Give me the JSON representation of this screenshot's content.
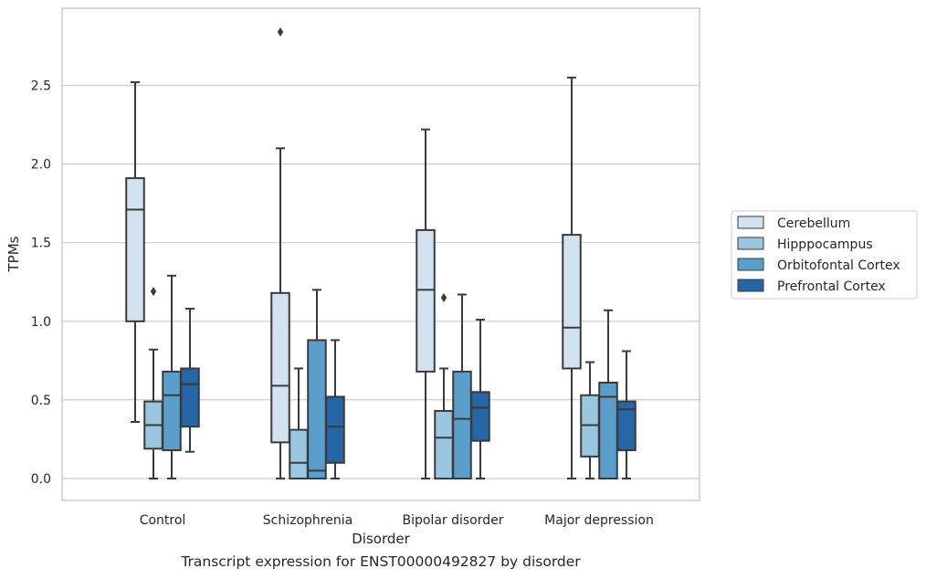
{
  "caption": "Transcript expression for ENST00000492827 by disorder",
  "chart_data": {
    "type": "box",
    "xlabel": "Disorder",
    "ylabel": "TPMs",
    "ylim": [
      -0.14,
      2.99
    ],
    "yticks": [
      0.0,
      0.5,
      1.0,
      1.5,
      2.0,
      2.5
    ],
    "ytick_labels": [
      "0.0",
      "0.5",
      "1.0",
      "1.5",
      "2.0",
      "2.5"
    ],
    "grid": "horizontal",
    "legend_position": "right",
    "categories": [
      "Control",
      "Schizophrenia",
      "Bipolar disorder",
      "Major depression"
    ],
    "series": [
      {
        "name": "Cerebellum",
        "color": "#d2e2f1",
        "boxes": [
          {
            "whislo": 0.36,
            "q1": 1.0,
            "med": 1.71,
            "q3": 1.91,
            "whishi": 2.52,
            "fliers": []
          },
          {
            "whislo": 0.0,
            "q1": 0.23,
            "med": 0.59,
            "q3": 1.18,
            "whishi": 2.1,
            "fliers": [
              2.84
            ]
          },
          {
            "whislo": 0.0,
            "q1": 0.68,
            "med": 1.2,
            "q3": 1.58,
            "whishi": 2.22,
            "fliers": []
          },
          {
            "whislo": 0.0,
            "q1": 0.7,
            "med": 0.96,
            "q3": 1.55,
            "whishi": 2.55,
            "fliers": []
          }
        ]
      },
      {
        "name": "Hipppocampus",
        "color": "#9ac7e0",
        "boxes": [
          {
            "whislo": 0.0,
            "q1": 0.19,
            "med": 0.34,
            "q3": 0.49,
            "whishi": 0.82,
            "fliers": [
              1.19
            ]
          },
          {
            "whislo": 0.0,
            "q1": 0.0,
            "med": 0.1,
            "q3": 0.31,
            "whishi": 0.7,
            "fliers": []
          },
          {
            "whislo": 0.0,
            "q1": 0.0,
            "med": 0.26,
            "q3": 0.43,
            "whishi": 0.7,
            "fliers": [
              1.15
            ]
          },
          {
            "whislo": 0.0,
            "q1": 0.14,
            "med": 0.34,
            "q3": 0.53,
            "whishi": 0.74,
            "fliers": []
          }
        ]
      },
      {
        "name": "Orbitofontal Cortex",
        "color": "#5a9ecb",
        "boxes": [
          {
            "whislo": 0.0,
            "q1": 0.18,
            "med": 0.53,
            "q3": 0.68,
            "whishi": 1.29,
            "fliers": []
          },
          {
            "whislo": 0.0,
            "q1": 0.0,
            "med": 0.05,
            "q3": 0.88,
            "whishi": 1.2,
            "fliers": []
          },
          {
            "whislo": 0.0,
            "q1": 0.0,
            "med": 0.38,
            "q3": 0.68,
            "whishi": 1.17,
            "fliers": []
          },
          {
            "whislo": 0.0,
            "q1": 0.0,
            "med": 0.52,
            "q3": 0.61,
            "whishi": 1.07,
            "fliers": []
          }
        ]
      },
      {
        "name": "Prefrontal Cortex",
        "color": "#2466a6",
        "boxes": [
          {
            "whislo": 0.17,
            "q1": 0.33,
            "med": 0.6,
            "q3": 0.7,
            "whishi": 1.08,
            "fliers": []
          },
          {
            "whislo": 0.0,
            "q1": 0.1,
            "med": 0.33,
            "q3": 0.52,
            "whishi": 0.88,
            "fliers": []
          },
          {
            "whislo": 0.0,
            "q1": 0.24,
            "med": 0.45,
            "q3": 0.55,
            "whishi": 1.01,
            "fliers": []
          },
          {
            "whislo": 0.0,
            "q1": 0.18,
            "med": 0.44,
            "q3": 0.49,
            "whishi": 0.81,
            "fliers": []
          }
        ]
      }
    ]
  }
}
